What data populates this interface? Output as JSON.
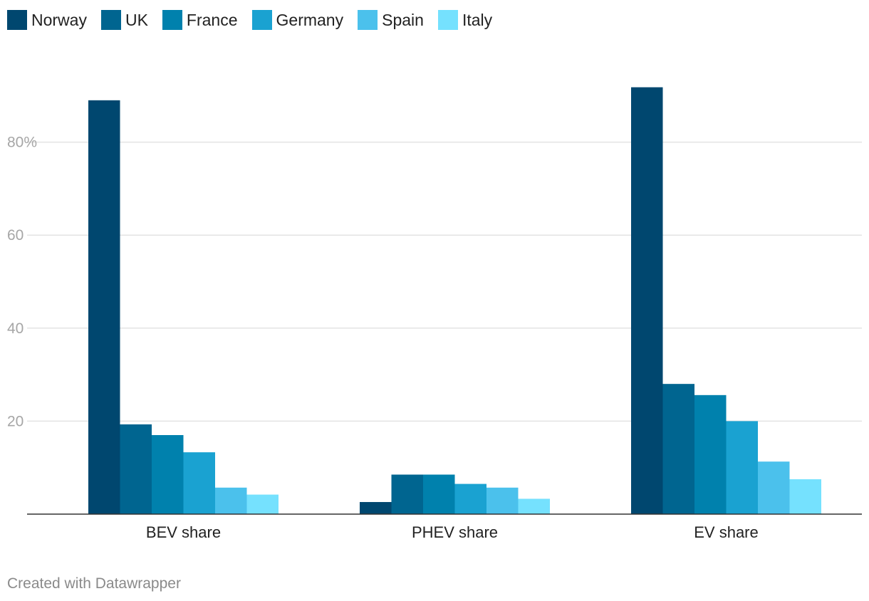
{
  "chart_data": {
    "type": "bar",
    "categories": [
      "BEV share",
      "PHEV share",
      "EV share"
    ],
    "series": [
      {
        "name": "Norway",
        "color": "#00476f",
        "values": [
          89,
          2.6,
          91.8
        ]
      },
      {
        "name": "UK",
        "color": "#006590",
        "values": [
          19.3,
          8.5,
          28
        ]
      },
      {
        "name": "France",
        "color": "#0081ad",
        "values": [
          17,
          8.5,
          25.6
        ]
      },
      {
        "name": "Germany",
        "color": "#1aa2d1",
        "values": [
          13.3,
          6.5,
          20
        ]
      },
      {
        "name": "Spain",
        "color": "#4bc1ec",
        "values": [
          5.7,
          5.7,
          11.3
        ]
      },
      {
        "name": "Italy",
        "color": "#75e1fe",
        "values": [
          4.2,
          3.3,
          7.5
        ]
      }
    ],
    "yticks": [
      {
        "value": 20,
        "label": "20"
      },
      {
        "value": 40,
        "label": "40"
      },
      {
        "value": 60,
        "label": "60"
      },
      {
        "value": 80,
        "label": "80%"
      }
    ],
    "ylim": [
      0,
      95
    ],
    "grid": true,
    "legend_position": "top-left",
    "title": "",
    "xlabel": "",
    "ylabel": ""
  },
  "footer": {
    "credit": "Created with Datawrapper"
  }
}
